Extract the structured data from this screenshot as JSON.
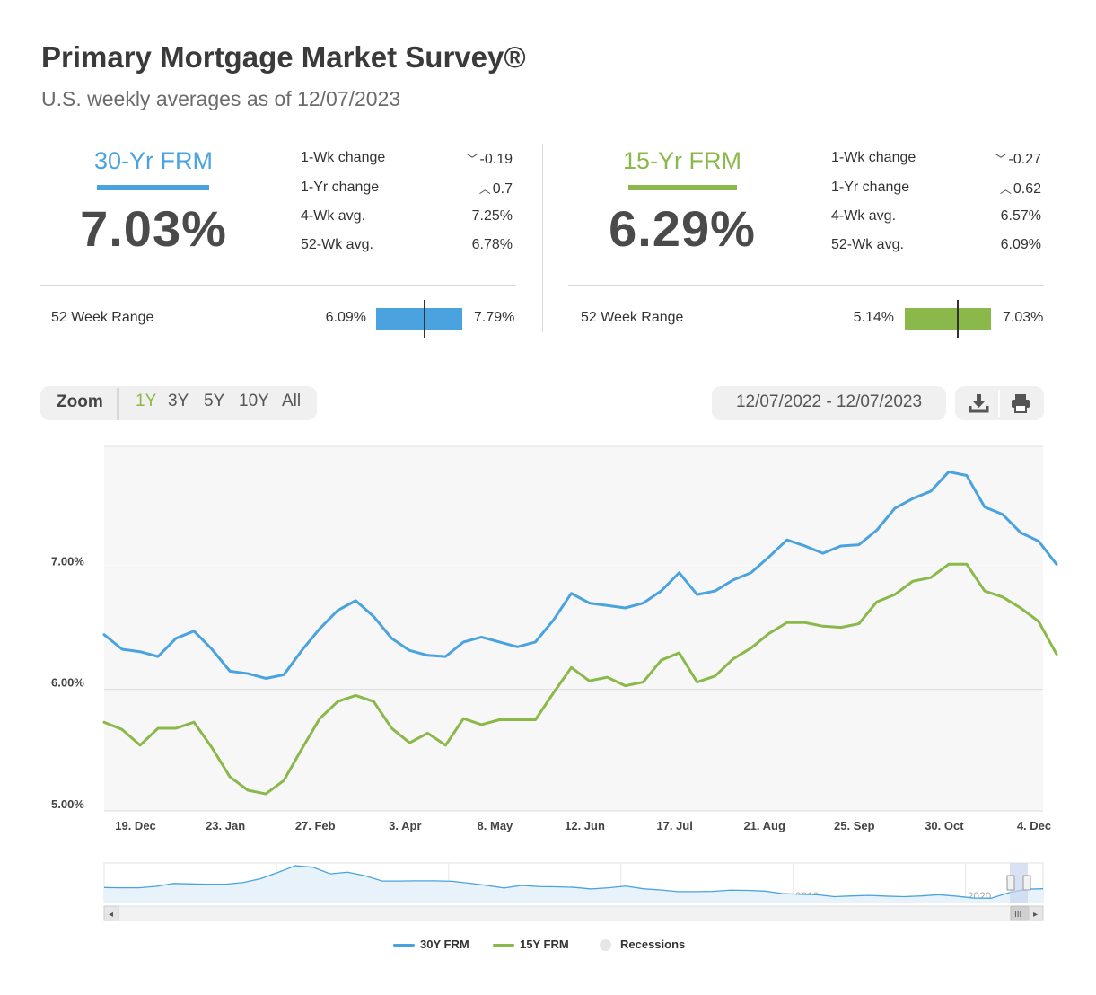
{
  "header": {
    "title": "Primary Mortgage Market Survey®",
    "subtitle": "U.S. weekly averages as of 12/07/2023"
  },
  "colors": {
    "frm30": "#4aa3df",
    "frm15": "#8ab84a",
    "recessions": "#e6e6e6"
  },
  "rates": [
    {
      "name": "30-Yr FRM",
      "rate": "7.03%",
      "stats": [
        {
          "label": "1-Wk change",
          "value": "-0.19",
          "direction": "down"
        },
        {
          "label": "1-Yr change",
          "value": "0.7",
          "direction": "up"
        },
        {
          "label": "4-Wk avg.",
          "value": "7.25%"
        },
        {
          "label": "52-Wk avg.",
          "value": "6.78%"
        }
      ],
      "range_label": "52 Week Range",
      "range_low": "6.09%",
      "range_high": "7.79%",
      "range_current": 7.03
    },
    {
      "name": "15-Yr FRM",
      "rate": "6.29%",
      "stats": [
        {
          "label": "1-Wk change",
          "value": "-0.27",
          "direction": "down"
        },
        {
          "label": "1-Yr change",
          "value": "0.62",
          "direction": "up"
        },
        {
          "label": "4-Wk avg.",
          "value": "6.57%"
        },
        {
          "label": "52-Wk avg.",
          "value": "6.09%"
        }
      ],
      "range_label": "52 Week Range",
      "range_low": "5.14%",
      "range_high": "7.03%",
      "range_current": 6.29
    }
  ],
  "toolbar": {
    "zoom_label": "Zoom",
    "zoom_options": [
      "1Y",
      "3Y",
      "5Y",
      "10Y",
      "All"
    ],
    "zoom_selected": "1Y",
    "date_range": "12/07/2022 - 12/07/2023",
    "download_icon": "download-icon",
    "print_icon": "print-icon"
  },
  "chart_data": {
    "type": "line",
    "y_tick_labels": [
      "5.00%",
      "6.00%",
      "7.00%"
    ],
    "y_ticks": [
      5,
      6,
      7
    ],
    "ylim": [
      5,
      8
    ],
    "x_tick_labels": [
      "19. Dec",
      "23. Jan",
      "27. Feb",
      "3. Apr",
      "8. May",
      "12. Jun",
      "17. Jul",
      "21. Aug",
      "25. Sep",
      "30. Oct",
      "4. Dec"
    ],
    "x_tick_weeks": [
      1.75,
      6.75,
      11.75,
      16.75,
      21.75,
      26.75,
      31.75,
      36.75,
      41.75,
      46.75,
      51.75
    ],
    "x_range_weeks": [
      0,
      52.25
    ],
    "grid": true,
    "legend_position": "bottom-center",
    "series": [
      {
        "name": "30Y FRM",
        "values": [
          6.45,
          6.33,
          6.31,
          6.27,
          6.42,
          6.48,
          6.33,
          6.15,
          6.13,
          6.09,
          6.12,
          6.32,
          6.5,
          6.65,
          6.73,
          6.6,
          6.42,
          6.32,
          6.28,
          6.27,
          6.39,
          6.43,
          6.39,
          6.35,
          6.39,
          6.57,
          6.79,
          6.71,
          6.69,
          6.67,
          6.71,
          6.81,
          6.96,
          6.78,
          6.81,
          6.9,
          6.96,
          7.09,
          7.23,
          7.18,
          7.12,
          7.18,
          7.19,
          7.31,
          7.49,
          7.57,
          7.63,
          7.79,
          7.76,
          7.5,
          7.44,
          7.29,
          7.22,
          7.03
        ]
      },
      {
        "name": "15Y FRM",
        "values": [
          5.73,
          5.67,
          5.54,
          5.68,
          5.68,
          5.73,
          5.52,
          5.28,
          5.17,
          5.14,
          5.25,
          5.51,
          5.76,
          5.9,
          5.95,
          5.9,
          5.68,
          5.56,
          5.64,
          5.54,
          5.76,
          5.71,
          5.75,
          5.75,
          5.75,
          5.97,
          6.18,
          6.07,
          6.1,
          6.03,
          6.06,
          6.24,
          6.3,
          6.06,
          6.11,
          6.25,
          6.34,
          6.46,
          6.55,
          6.55,
          6.52,
          6.51,
          6.54,
          6.72,
          6.78,
          6.89,
          6.92,
          7.03,
          7.03,
          6.81,
          6.76,
          6.67,
          6.56,
          6.29
        ]
      }
    ],
    "legend": [
      {
        "name": "30Y FRM"
      },
      {
        "name": "15Y FRM"
      },
      {
        "name": "Recessions"
      }
    ],
    "navigator": {
      "year_labels": [
        "1970",
        "1980",
        "1990",
        "2000",
        "2010",
        "2020"
      ],
      "start_year": 1971,
      "end_year": 2024,
      "values": [
        7.5,
        7.4,
        7.4,
        8.0,
        9.2,
        9.0,
        8.9,
        8.9,
        9.6,
        11.2,
        13.8,
        16.6,
        16.0,
        13.2,
        13.9,
        12.4,
        10.2,
        10.2,
        10.3,
        10.3,
        10.1,
        9.3,
        8.4,
        7.3,
        8.4,
        7.9,
        7.8,
        7.6,
        6.9,
        7.4,
        8.1,
        7.0,
        6.5,
        5.8,
        5.8,
        5.9,
        6.4,
        6.3,
        6.0,
        5.0,
        4.7,
        4.5,
        3.7,
        4.0,
        4.2,
        3.9,
        3.7,
        4.0,
        4.5,
        3.9,
        3.1,
        3.0,
        5.3,
        6.8,
        7.0
      ]
    }
  }
}
